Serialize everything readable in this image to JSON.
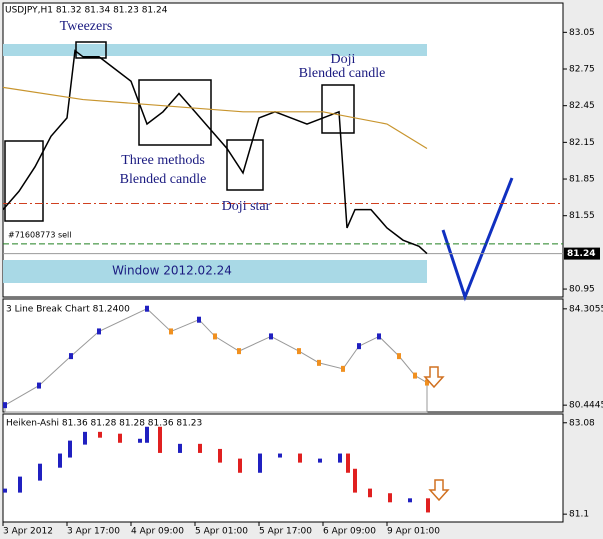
{
  "chart_data": [
    {
      "type": "line",
      "title": "USDJPY,H1  81.32 81.34 81.23 81.24",
      "x": [
        0,
        4,
        8,
        12,
        16,
        18,
        20,
        24,
        28,
        32,
        36,
        40,
        44,
        48,
        52,
        56,
        60,
        64,
        68,
        72,
        76,
        80,
        84,
        86,
        88,
        92,
        96,
        100,
        104,
        106
      ],
      "series": [
        {
          "name": "USDJPY",
          "color": "#000000",
          "values": [
            81.6,
            81.75,
            81.95,
            82.2,
            82.35,
            82.9,
            82.85,
            82.85,
            82.75,
            82.65,
            82.3,
            82.4,
            82.55,
            82.4,
            82.25,
            82.1,
            81.9,
            82.35,
            82.4,
            82.35,
            82.3,
            82.35,
            82.4,
            81.45,
            81.6,
            81.6,
            81.45,
            81.35,
            81.3,
            81.24
          ]
        },
        {
          "name": "MA",
          "color": "#c8952e",
          "x": [
            0,
            20,
            40,
            60,
            80,
            96,
            106
          ],
          "values": [
            82.6,
            82.5,
            82.45,
            82.4,
            82.4,
            82.3,
            82.1
          ]
        }
      ],
      "levels": [
        {
          "value": 81.65,
          "color": "#d04020"
        },
        {
          "value": 81.32,
          "color": "#208020"
        }
      ],
      "last": 81.24,
      "annotations": [
        "Tweezers",
        "Doji",
        "Blended candle",
        "Three methods",
        "Blended candle",
        "Doji star",
        "#71608773 sell",
        "Window 2012.02.24"
      ],
      "xlim": [
        0,
        140
      ],
      "ylim": [
        80.885,
        83.29
      ],
      "yticks": [
        83.05,
        82.75,
        82.45,
        82.15,
        81.85,
        81.55,
        80.95
      ]
    },
    {
      "type": "area",
      "title": "3 Line Break Chart 81.2400",
      "x": [
        0.5,
        9,
        17,
        24,
        36,
        42,
        49,
        53,
        59,
        67,
        74,
        79,
        85,
        89,
        94,
        99,
        103,
        106
      ],
      "series": [
        {
          "name": "3 Line Break",
          "color": "#2020c0",
          "down_color": "#f09020",
          "values": [
            80.445,
            81.23,
            82.41,
            83.4,
            84.31,
            83.4,
            83.87,
            83.2,
            82.61,
            83.2,
            82.61,
            82.14,
            81.9,
            82.81,
            83.2,
            82.41,
            81.63,
            81.35
          ]
        }
      ],
      "xlim": [
        0,
        140
      ],
      "ylim": [
        80.17,
        84.7
      ],
      "yticks": [
        84.3055,
        80.4445
      ]
    },
    {
      "type": "bar",
      "title": "Heiken-Ashi 81.36 81.28 81.28 81.36 81.23",
      "x": [
        0.5,
        4.25,
        9.25,
        14.25,
        16.75,
        20.5,
        24.25,
        29.25,
        34.25,
        36,
        39.25,
        44.25,
        49.25,
        54.25,
        59.25,
        64.25,
        69.25,
        74.25,
        79.25,
        84.25,
        86.25,
        88,
        91.75,
        96.75,
        101.75,
        106.25
      ],
      "series": [
        {
          "name": "Heiken-Ashi",
          "color": "#2020c0",
          "down_color": "#e02020",
          "values": [
            81.61,
            81.87,
            82.15,
            82.37,
            82.65,
            82.84,
            82.8,
            82.69,
            82.69,
            82.95,
            82.47,
            82.58,
            82.47,
            82.26,
            82.04,
            82.37,
            82.37,
            82.26,
            82.26,
            82.37,
            82.04,
            81.61,
            81.51,
            81.4,
            81.4,
            81.18
          ]
        }
      ],
      "xlim": [
        0,
        140
      ],
      "ylim": [
        80.93,
        83.27
      ],
      "yticks": [
        83.08,
        81.1
      ],
      "xticks": [
        {
          "value": 0,
          "label": "3 Apr 2012"
        },
        {
          "value": 16,
          "label": "3 Apr 17:00"
        },
        {
          "value": 32,
          "label": "4 Apr 09:00"
        },
        {
          "value": 48,
          "label": "5 Apr 01:00"
        },
        {
          "value": 64,
          "label": "5 Apr 17:00"
        },
        {
          "value": 80,
          "label": "6 Apr 09:00"
        },
        {
          "value": 96,
          "label": "9 Apr 01:00"
        }
      ]
    }
  ]
}
